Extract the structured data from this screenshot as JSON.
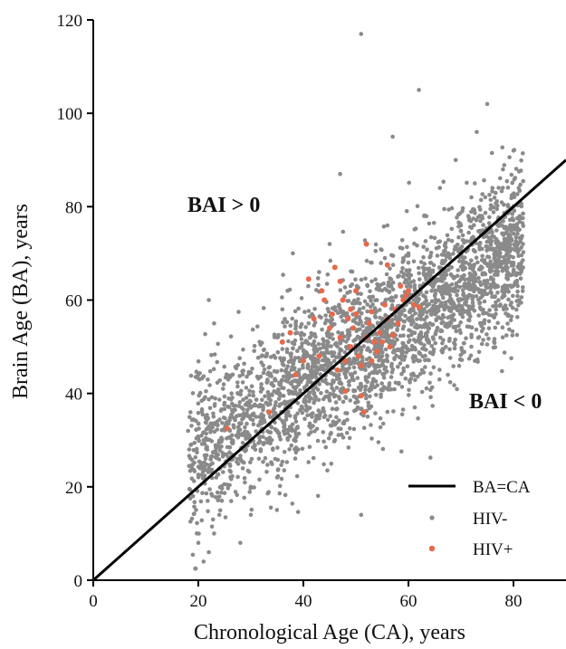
{
  "chart_data": {
    "type": "scatter",
    "xlabel": "Chronological Age (CA), years",
    "ylabel": "Brain Age (BA), years",
    "xlim": [
      0,
      90
    ],
    "ylim": [
      0,
      120
    ],
    "x_ticks": [
      "0",
      "20",
      "40",
      "60",
      "80"
    ],
    "y_ticks": [
      "0",
      "20",
      "40",
      "60",
      "80",
      "100",
      "120"
    ],
    "grid": false,
    "legend_placement": "bottom-right",
    "annotations": {
      "above": "BAI > 0",
      "below": "BAI < 0"
    },
    "reference_line": {
      "name": "BA=CA",
      "slope": 1,
      "intercept": 0,
      "color": "#000000"
    },
    "series": [
      {
        "name": "HIV-",
        "color": "#8a8a8a",
        "approx_count": 3000,
        "description_x_range": [
          18,
          82
        ],
        "sample_points": [
          [
            19.5,
            2.5
          ],
          [
            21,
            4
          ],
          [
            22,
            6
          ],
          [
            20,
            8
          ],
          [
            23,
            10
          ],
          [
            24,
            14
          ],
          [
            19,
            18
          ],
          [
            22,
            24
          ],
          [
            21,
            30
          ],
          [
            22,
            60
          ],
          [
            23,
            55
          ],
          [
            20,
            44
          ],
          [
            25,
            38
          ],
          [
            26,
            32
          ],
          [
            28,
            26
          ],
          [
            28,
            8
          ],
          [
            30,
            14
          ],
          [
            30,
            20
          ],
          [
            31,
            35
          ],
          [
            32,
            42
          ],
          [
            33,
            48
          ],
          [
            34,
            30
          ],
          [
            35,
            22
          ],
          [
            35,
            52
          ],
          [
            36,
            58
          ],
          [
            37,
            62
          ],
          [
            38,
            40
          ],
          [
            38,
            70
          ],
          [
            39,
            28
          ],
          [
            40,
            48
          ],
          [
            41,
            55
          ],
          [
            42,
            38
          ],
          [
            43,
            66
          ],
          [
            44,
            45
          ],
          [
            45,
            52
          ],
          [
            45,
            72
          ],
          [
            46,
            30
          ],
          [
            47,
            58
          ],
          [
            47,
            87
          ],
          [
            48,
            44
          ],
          [
            49,
            63
          ],
          [
            50,
            50
          ],
          [
            51,
            117
          ],
          [
            51,
            14
          ],
          [
            52,
            56
          ],
          [
            53,
            68
          ],
          [
            53,
            42
          ],
          [
            54,
            60
          ],
          [
            55,
            48
          ],
          [
            56,
            76
          ],
          [
            57,
            55
          ],
          [
            57,
            95
          ],
          [
            58,
            65
          ],
          [
            59,
            50
          ],
          [
            60,
            70
          ],
          [
            61,
            60
          ],
          [
            62,
            105
          ],
          [
            62,
            52
          ],
          [
            63,
            78
          ],
          [
            64,
            66
          ],
          [
            65,
            58
          ],
          [
            66,
            84
          ],
          [
            67,
            72
          ],
          [
            68,
            62
          ],
          [
            69,
            90
          ],
          [
            70,
            76
          ],
          [
            71,
            68
          ],
          [
            72,
            82
          ],
          [
            73,
            96
          ],
          [
            74,
            78
          ],
          [
            75,
            102
          ],
          [
            76,
            84
          ],
          [
            77,
            72
          ],
          [
            78,
            88
          ],
          [
            79,
            80
          ],
          [
            80,
            92
          ],
          [
            80,
            76
          ],
          [
            81,
            84
          ]
        ]
      },
      {
        "name": "HIV+",
        "color": "#e8694a",
        "approx_count": 70,
        "points": [
          [
            25.5,
            32.5
          ],
          [
            33.5,
            36
          ],
          [
            36,
            51
          ],
          [
            37.5,
            53
          ],
          [
            38.5,
            44
          ],
          [
            40,
            47
          ],
          [
            41,
            64.5
          ],
          [
            42,
            56
          ],
          [
            43,
            48
          ],
          [
            43.5,
            62
          ],
          [
            44,
            60
          ],
          [
            45,
            54
          ],
          [
            45.5,
            57
          ],
          [
            46,
            67
          ],
          [
            46.5,
            45
          ],
          [
            47,
            64
          ],
          [
            47,
            52
          ],
          [
            47.5,
            60
          ],
          [
            48,
            40.5
          ],
          [
            48,
            47
          ],
          [
            48.5,
            56
          ],
          [
            49,
            58
          ],
          [
            49,
            50
          ],
          [
            49.5,
            54
          ],
          [
            50,
            57
          ],
          [
            50,
            62
          ],
          [
            50.5,
            48
          ],
          [
            51,
            46
          ],
          [
            51,
            39.5
          ],
          [
            51.5,
            36
          ],
          [
            52,
            72
          ],
          [
            52,
            52
          ],
          [
            52.5,
            55
          ],
          [
            53,
            47
          ],
          [
            53,
            57.5
          ],
          [
            53.5,
            51
          ],
          [
            54,
            49
          ],
          [
            54.5,
            53
          ],
          [
            55,
            51
          ],
          [
            55.5,
            59
          ],
          [
            56,
            67.5
          ],
          [
            56,
            56
          ],
          [
            56.5,
            50
          ],
          [
            57,
            52.5
          ],
          [
            57.5,
            58
          ],
          [
            58,
            55
          ],
          [
            59,
            60
          ],
          [
            59.5,
            61
          ],
          [
            60,
            62
          ],
          [
            61,
            59
          ],
          [
            62,
            58.5
          ],
          [
            58.5,
            63
          ]
        ]
      }
    ]
  }
}
